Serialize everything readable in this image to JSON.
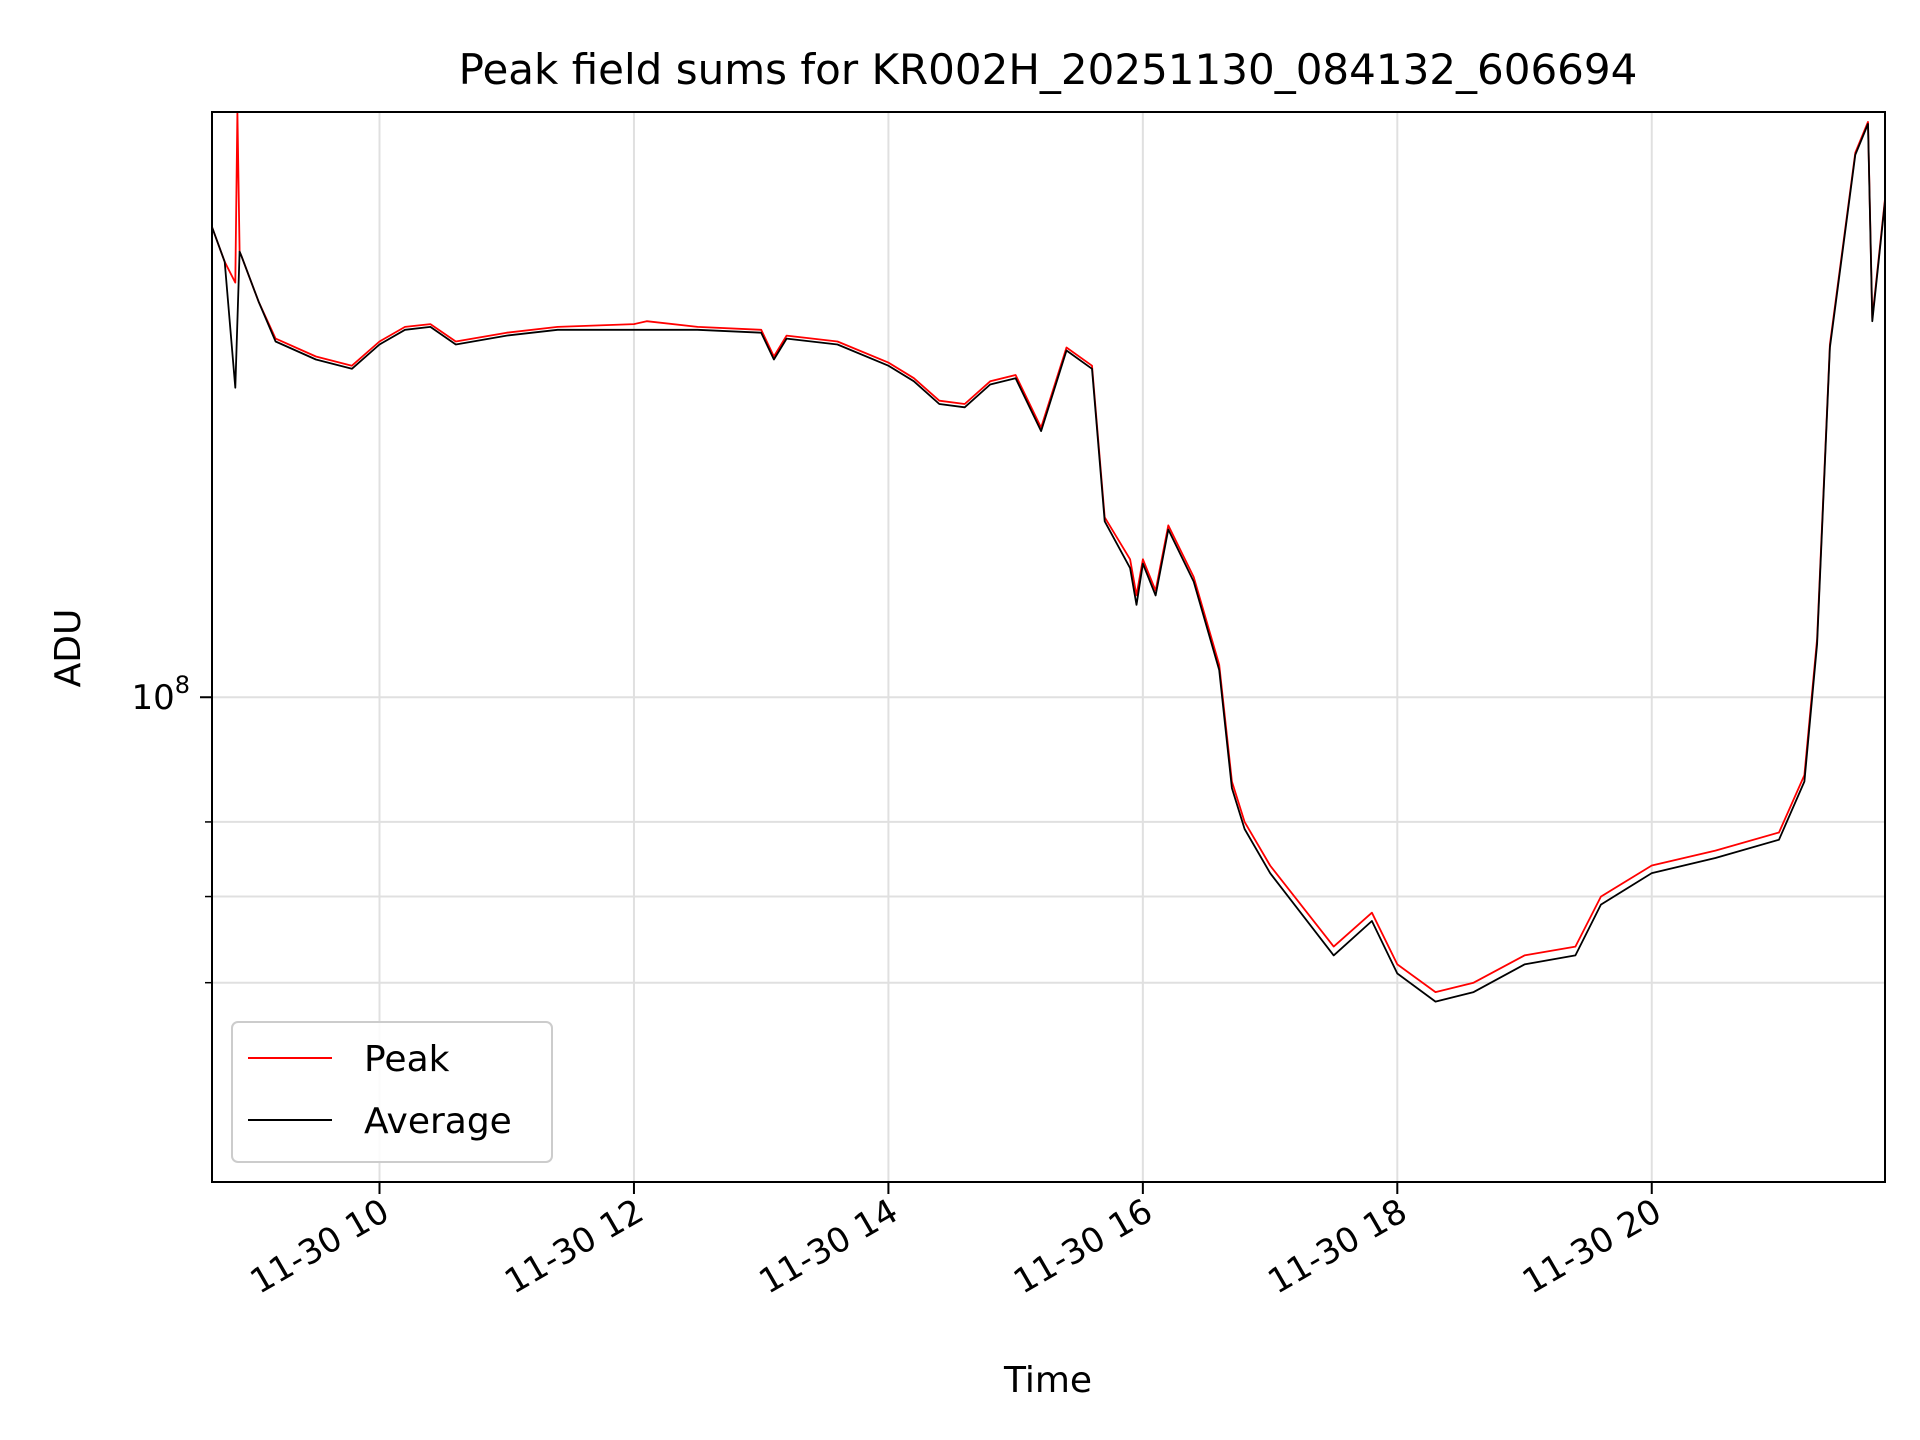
{
  "chart_data": {
    "type": "line",
    "title": "Peak field sums for KR002H_20251130_084132_606694",
    "xlabel": "Time",
    "ylabel": "ADU",
    "yscale": "log",
    "xlim": [
      "2025-11-30 08:41",
      "2025-11-30 21:50"
    ],
    "ylim": [
      42000000,
      285000000
    ],
    "x_ticks": [
      {
        "x": "2025-11-30 10:00",
        "label": "11-30 10"
      },
      {
        "x": "2025-11-30 12:00",
        "label": "11-30 12"
      },
      {
        "x": "2025-11-30 14:00",
        "label": "11-30 14"
      },
      {
        "x": "2025-11-30 16:00",
        "label": "11-30 16"
      },
      {
        "x": "2025-11-30 18:00",
        "label": "11-30 18"
      },
      {
        "x": "2025-11-30 20:00",
        "label": "11-30 20"
      }
    ],
    "y_major_ticks": [
      {
        "value": 100000000,
        "base": "10",
        "exp": "8"
      }
    ],
    "y_minor_gridlines": [
      60000000,
      70000000,
      80000000
    ],
    "grid": true,
    "legend_position": "lower-left",
    "series": [
      {
        "name": "Peak",
        "color": "#ff0000",
        "points": [
          [
            "2025-11-30 08:41",
            232000000
          ],
          [
            "2025-11-30 08:47",
            218000000
          ],
          [
            "2025-11-30 08:52",
            210000000
          ],
          [
            "2025-11-30 08:53",
            285000000
          ],
          [
            "2025-11-30 08:54",
            222000000
          ],
          [
            "2025-11-30 08:55",
            220000000
          ],
          [
            "2025-11-30 09:03",
            203000000
          ],
          [
            "2025-11-30 09:11",
            190000000
          ],
          [
            "2025-11-30 09:30",
            184000000
          ],
          [
            "2025-11-30 09:47",
            181000000
          ],
          [
            "2025-11-30 10:00",
            189000000
          ],
          [
            "2025-11-30 10:12",
            194000000
          ],
          [
            "2025-11-30 10:24",
            195000000
          ],
          [
            "2025-11-30 10:36",
            189000000
          ],
          [
            "2025-11-30 11:00",
            192000000
          ],
          [
            "2025-11-30 11:24",
            194000000
          ],
          [
            "2025-11-30 12:00",
            195000000
          ],
          [
            "2025-11-30 12:06",
            196000000
          ],
          [
            "2025-11-30 12:30",
            194000000
          ],
          [
            "2025-11-30 13:00",
            193000000
          ],
          [
            "2025-11-30 13:06",
            184000000
          ],
          [
            "2025-11-30 13:12",
            191000000
          ],
          [
            "2025-11-30 13:36",
            189000000
          ],
          [
            "2025-11-30 14:00",
            182000000
          ],
          [
            "2025-11-30 14:12",
            177000000
          ],
          [
            "2025-11-30 14:24",
            170000000
          ],
          [
            "2025-11-30 14:36",
            169000000
          ],
          [
            "2025-11-30 14:48",
            176000000
          ],
          [
            "2025-11-30 15:00",
            178000000
          ],
          [
            "2025-11-30 15:12",
            162000000
          ],
          [
            "2025-11-30 15:24",
            187000000
          ],
          [
            "2025-11-30 15:36",
            181000000
          ],
          [
            "2025-11-30 15:42",
            138000000
          ],
          [
            "2025-11-30 15:54",
            128000000
          ],
          [
            "2025-11-30 15:57",
            120000000
          ],
          [
            "2025-11-30 16:00",
            128000000
          ],
          [
            "2025-11-30 16:06",
            121000000
          ],
          [
            "2025-11-30 16:12",
            136000000
          ],
          [
            "2025-11-30 16:24",
            124000000
          ],
          [
            "2025-11-30 16:36",
            106000000
          ],
          [
            "2025-11-30 16:42",
            86000000
          ],
          [
            "2025-11-30 16:48",
            80000000
          ],
          [
            "2025-11-30 17:00",
            74000000
          ],
          [
            "2025-11-30 17:30",
            64000000
          ],
          [
            "2025-11-30 17:48",
            68000000
          ],
          [
            "2025-11-30 18:00",
            62000000
          ],
          [
            "2025-11-30 18:18",
            59000000
          ],
          [
            "2025-11-30 18:36",
            60000000
          ],
          [
            "2025-11-30 19:00",
            63000000
          ],
          [
            "2025-11-30 19:24",
            64000000
          ],
          [
            "2025-11-30 19:36",
            70000000
          ],
          [
            "2025-11-30 20:00",
            74000000
          ],
          [
            "2025-11-30 20:30",
            76000000
          ],
          [
            "2025-11-30 21:00",
            78500000
          ],
          [
            "2025-11-30 21:12",
            87000000
          ],
          [
            "2025-11-30 21:18",
            111000000
          ],
          [
            "2025-11-30 21:24",
            188000000
          ],
          [
            "2025-11-30 21:36",
            265000000
          ],
          [
            "2025-11-30 21:42",
            280000000
          ],
          [
            "2025-11-30 21:44",
            197000000
          ],
          [
            "2025-11-30 21:50",
            244000000
          ]
        ]
      },
      {
        "name": "Average",
        "color": "#000000",
        "points": [
          [
            "2025-11-30 08:41",
            232000000
          ],
          [
            "2025-11-30 08:47",
            218000000
          ],
          [
            "2025-11-30 08:52",
            174000000
          ],
          [
            "2025-11-30 08:54",
            222000000
          ],
          [
            "2025-11-30 08:55",
            220000000
          ],
          [
            "2025-11-30 09:03",
            203000000
          ],
          [
            "2025-11-30 09:11",
            189000000
          ],
          [
            "2025-11-30 09:30",
            183000000
          ],
          [
            "2025-11-30 09:47",
            180000000
          ],
          [
            "2025-11-30 10:00",
            188000000
          ],
          [
            "2025-11-30 10:12",
            193000000
          ],
          [
            "2025-11-30 10:24",
            194000000
          ],
          [
            "2025-11-30 10:36",
            188000000
          ],
          [
            "2025-11-30 11:00",
            191000000
          ],
          [
            "2025-11-30 11:24",
            193000000
          ],
          [
            "2025-11-30 12:00",
            193000000
          ],
          [
            "2025-11-30 12:30",
            193000000
          ],
          [
            "2025-11-30 13:00",
            192000000
          ],
          [
            "2025-11-30 13:06",
            183000000
          ],
          [
            "2025-11-30 13:12",
            190000000
          ],
          [
            "2025-11-30 13:36",
            188000000
          ],
          [
            "2025-11-30 14:00",
            181000000
          ],
          [
            "2025-11-30 14:12",
            176000000
          ],
          [
            "2025-11-30 14:24",
            169000000
          ],
          [
            "2025-11-30 14:36",
            168000000
          ],
          [
            "2025-11-30 14:48",
            175000000
          ],
          [
            "2025-11-30 15:00",
            177000000
          ],
          [
            "2025-11-30 15:12",
            161000000
          ],
          [
            "2025-11-30 15:24",
            186000000
          ],
          [
            "2025-11-30 15:36",
            180000000
          ],
          [
            "2025-11-30 15:42",
            137000000
          ],
          [
            "2025-11-30 15:54",
            126000000
          ],
          [
            "2025-11-30 15:57",
            118000000
          ],
          [
            "2025-11-30 16:00",
            127000000
          ],
          [
            "2025-11-30 16:06",
            120000000
          ],
          [
            "2025-11-30 16:12",
            135000000
          ],
          [
            "2025-11-30 16:24",
            123000000
          ],
          [
            "2025-11-30 16:36",
            105000000
          ],
          [
            "2025-11-30 16:42",
            85000000
          ],
          [
            "2025-11-30 16:48",
            79000000
          ],
          [
            "2025-11-30 17:00",
            73000000
          ],
          [
            "2025-11-30 17:30",
            63000000
          ],
          [
            "2025-11-30 17:48",
            67000000
          ],
          [
            "2025-11-30 18:00",
            61000000
          ],
          [
            "2025-11-30 18:18",
            58000000
          ],
          [
            "2025-11-30 18:36",
            59000000
          ],
          [
            "2025-11-30 19:00",
            62000000
          ],
          [
            "2025-11-30 19:24",
            63000000
          ],
          [
            "2025-11-30 19:36",
            69000000
          ],
          [
            "2025-11-30 20:00",
            73000000
          ],
          [
            "2025-11-30 20:30",
            75000000
          ],
          [
            "2025-11-30 21:00",
            77500000
          ],
          [
            "2025-11-30 21:12",
            86000000
          ],
          [
            "2025-11-30 21:18",
            110000000
          ],
          [
            "2025-11-30 21:24",
            187000000
          ],
          [
            "2025-11-30 21:36",
            264000000
          ],
          [
            "2025-11-30 21:42",
            279000000
          ],
          [
            "2025-11-30 21:44",
            196000000
          ],
          [
            "2025-11-30 21:50",
            243000000
          ]
        ]
      }
    ]
  }
}
